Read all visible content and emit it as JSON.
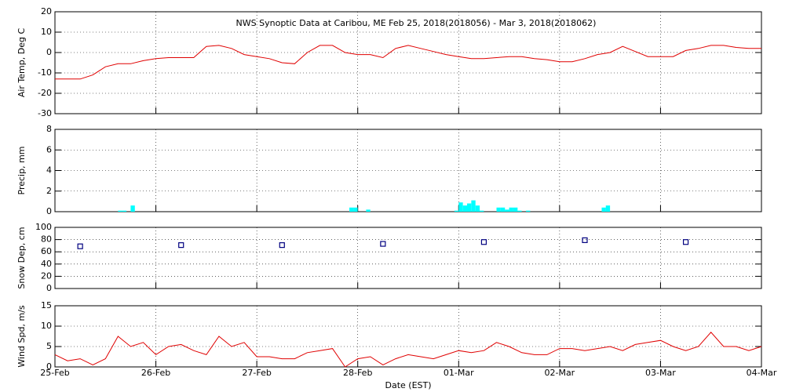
{
  "chart_data": [
    {
      "type": "line",
      "title": "NWS Synoptic Data at Caribou, ME   Feb 25, 2018(2018056) - Mar  3, 2018(2018062)",
      "ylabel": "Air Temp, Deg C",
      "color": "#e00000",
      "xlim": [
        0,
        7
      ],
      "ylim": [
        -30,
        20
      ],
      "yticks": [
        -30,
        -20,
        -10,
        0,
        10,
        20
      ],
      "grid": true,
      "x": [
        0,
        0.125,
        0.25,
        0.375,
        0.5,
        0.625,
        0.75,
        0.875,
        1,
        1.125,
        1.25,
        1.375,
        1.5,
        1.625,
        1.75,
        1.875,
        2,
        2.125,
        2.25,
        2.375,
        2.5,
        2.625,
        2.75,
        2.875,
        3,
        3.125,
        3.25,
        3.375,
        3.5,
        3.625,
        3.75,
        3.875,
        4,
        4.125,
        4.25,
        4.375,
        4.5,
        4.625,
        4.75,
        4.875,
        5,
        5.125,
        5.25,
        5.375,
        5.5,
        5.625,
        5.75,
        5.875,
        6,
        6.125,
        6.25,
        6.375,
        6.5,
        6.625,
        6.75,
        6.875,
        7
      ],
      "values": [
        -13,
        -13,
        -13,
        -11,
        -7,
        -5.5,
        -5.5,
        -4,
        -3,
        -2.5,
        -2.5,
        -2.5,
        3,
        3.5,
        2,
        -1,
        -2,
        -3,
        -5,
        -5.5,
        0,
        3.5,
        3.5,
        0,
        -1,
        -1,
        -2.5,
        2,
        3.5,
        2,
        0.5,
        -1,
        -2,
        -3,
        -3,
        -2.5,
        -2,
        -2,
        -3,
        -3.5,
        -4.5,
        -4.5,
        -3,
        -1,
        0,
        3,
        0.5,
        -2,
        -2,
        -2,
        1,
        2,
        3.5,
        3.5,
        2.5,
        2,
        2
      ]
    },
    {
      "type": "bar",
      "ylabel": "Precip, mm",
      "color": "#00ffff",
      "xlim": [
        0,
        7
      ],
      "ylim": [
        0,
        8
      ],
      "yticks": [
        0,
        2,
        4,
        6,
        8
      ],
      "grid": true,
      "x": [
        0.625,
        0.667,
        0.75,
        2.917,
        2.958,
        3.083,
        3.958,
        4,
        4.042,
        4.083,
        4.125,
        4.167,
        4.208,
        4.375,
        4.417,
        4.458,
        4.5,
        4.542,
        4.583,
        4.667,
        5.417,
        5.458
      ],
      "values": [
        0.1,
        0.1,
        0.6,
        0.4,
        0.4,
        0.2,
        0.1,
        0.9,
        0.6,
        0.8,
        1.1,
        0.6,
        0.1,
        0.4,
        0.4,
        0.2,
        0.4,
        0.4,
        0.1,
        0.1,
        0.4,
        0.6
      ]
    },
    {
      "type": "scatter",
      "ylabel": "Snow Dep, cm",
      "color": "#000080",
      "xlim": [
        0,
        7
      ],
      "ylim": [
        0,
        100
      ],
      "yticks": [
        0,
        20,
        40,
        60,
        80,
        100
      ],
      "grid": true,
      "x": [
        0.25,
        1.25,
        2.25,
        3.25,
        4.25,
        5.25,
        6.25
      ],
      "values": [
        69,
        71,
        71,
        73,
        76,
        79,
        76
      ]
    },
    {
      "type": "line",
      "ylabel": "Wind Spd, m/s",
      "color": "#e00000",
      "xlim": [
        0,
        7
      ],
      "ylim": [
        0,
        15
      ],
      "yticks": [
        0,
        5,
        10,
        15
      ],
      "grid": true,
      "xlabel": "Date (EST)",
      "xticks": [
        {
          "value": 0,
          "label": "25-Feb"
        },
        {
          "value": 1,
          "label": "26-Feb"
        },
        {
          "value": 2,
          "label": "27-Feb"
        },
        {
          "value": 3,
          "label": "28-Feb"
        },
        {
          "value": 4,
          "label": "01-Mar"
        },
        {
          "value": 5,
          "label": "02-Mar"
        },
        {
          "value": 6,
          "label": "03-Mar"
        },
        {
          "value": 7,
          "label": "04-Mar"
        }
      ],
      "x": [
        0,
        0.125,
        0.25,
        0.375,
        0.5,
        0.625,
        0.75,
        0.875,
        1,
        1.125,
        1.25,
        1.375,
        1.5,
        1.625,
        1.75,
        1.875,
        2,
        2.125,
        2.25,
        2.375,
        2.5,
        2.625,
        2.75,
        2.875,
        3,
        3.125,
        3.25,
        3.375,
        3.5,
        3.625,
        3.75,
        3.875,
        4,
        4.125,
        4.25,
        4.375,
        4.5,
        4.625,
        4.75,
        4.875,
        5,
        5.125,
        5.25,
        5.375,
        5.5,
        5.625,
        5.75,
        5.875,
        6,
        6.125,
        6.25,
        6.375,
        6.5,
        6.625,
        6.75,
        6.875,
        7
      ],
      "values": [
        3,
        1.5,
        2,
        0.5,
        2,
        7.5,
        5,
        6,
        3,
        5,
        5.5,
        4,
        3,
        7.5,
        5,
        6,
        2.5,
        2.5,
        2,
        2,
        3.5,
        4,
        4.5,
        0,
        2,
        2.5,
        0.5,
        2,
        3,
        2.5,
        2,
        3,
        4,
        3.5,
        4,
        6,
        5,
        3.5,
        3,
        3,
        4.5,
        4.5,
        4,
        4.5,
        5,
        4,
        5.5,
        6,
        6.5,
        5,
        4,
        5,
        8.5,
        5,
        5,
        4,
        5
      ]
    }
  ]
}
